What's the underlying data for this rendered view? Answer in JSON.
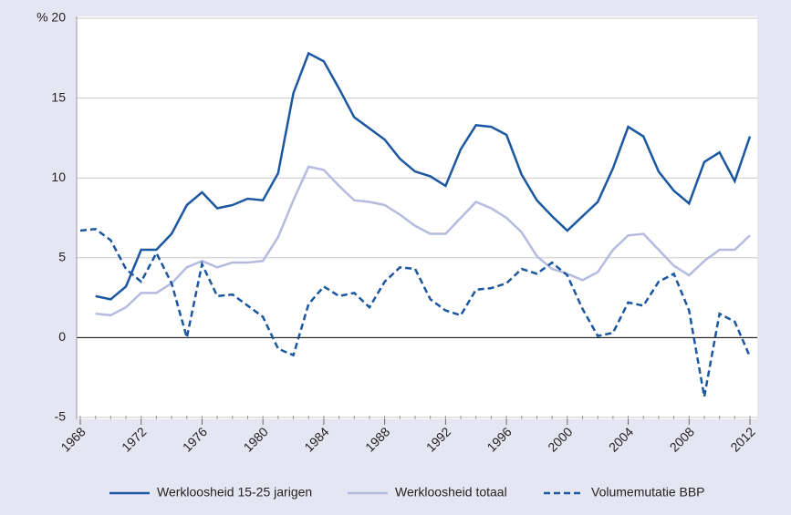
{
  "chart_data": {
    "type": "line",
    "x": [
      1968,
      1969,
      1970,
      1971,
      1972,
      1973,
      1974,
      1975,
      1976,
      1977,
      1978,
      1979,
      1980,
      1981,
      1982,
      1983,
      1984,
      1985,
      1986,
      1987,
      1988,
      1989,
      1990,
      1991,
      1992,
      1993,
      1994,
      1995,
      1996,
      1997,
      1998,
      1999,
      2000,
      2001,
      2002,
      2003,
      2004,
      2005,
      2006,
      2007,
      2008,
      2009,
      2010,
      2011,
      2012
    ],
    "series": [
      {
        "name": "Werkloosheid 15-25 jarigen",
        "color": "#1b57a0",
        "dash": false,
        "values": [
          null,
          2.6,
          2.4,
          3.2,
          5.5,
          5.5,
          6.5,
          8.3,
          9.1,
          8.1,
          8.3,
          8.7,
          8.6,
          10.3,
          15.3,
          17.8,
          17.3,
          15.6,
          13.8,
          13.1,
          12.4,
          11.2,
          10.4,
          10.1,
          9.5,
          11.8,
          13.3,
          13.2,
          12.7,
          10.2,
          8.6,
          7.6,
          6.7,
          7.6,
          8.5,
          10.6,
          13.2,
          12.6,
          10.4,
          9.2,
          8.4,
          11.0,
          11.6,
          9.8,
          12.6
        ]
      },
      {
        "name": "Werkloosheid totaal",
        "color": "#b4bbdf",
        "dash": false,
        "values": [
          null,
          1.5,
          1.4,
          1.9,
          2.8,
          2.8,
          3.4,
          4.4,
          4.8,
          4.4,
          4.7,
          4.7,
          4.8,
          6.3,
          8.6,
          10.7,
          10.5,
          9.5,
          8.6,
          8.5,
          8.3,
          7.7,
          7.0,
          6.5,
          6.5,
          7.5,
          8.5,
          8.1,
          7.5,
          6.6,
          5.1,
          4.3,
          4.0,
          3.6,
          4.1,
          5.5,
          6.4,
          6.5,
          5.5,
          4.5,
          3.9,
          4.8,
          5.5,
          5.5,
          6.4
        ]
      },
      {
        "name": "Volumemutatie BBP",
        "color": "#1b57a0",
        "dash": true,
        "values": [
          6.7,
          6.8,
          6.1,
          4.3,
          3.5,
          5.3,
          3.4,
          0.0,
          4.6,
          2.6,
          2.7,
          2.0,
          1.3,
          -0.7,
          -1.1,
          2.1,
          3.2,
          2.6,
          2.8,
          1.9,
          3.5,
          4.4,
          4.3,
          2.4,
          1.7,
          1.4,
          3.0,
          3.1,
          3.4,
          4.3,
          4.0,
          4.7,
          3.9,
          1.8,
          0.1,
          0.3,
          2.2,
          2.0,
          3.5,
          4.0,
          1.7,
          -3.7,
          1.5,
          1.0,
          -1.2
        ]
      }
    ],
    "xlim": [
      1968,
      2012
    ],
    "xticks": [
      1968,
      1972,
      1976,
      1980,
      1984,
      1988,
      1992,
      1996,
      2000,
      2004,
      2008,
      2012
    ],
    "ylim": [
      -5,
      20
    ],
    "yticks": [
      -5,
      0,
      5,
      10,
      15,
      {
        "value": 20,
        "label": "% 20"
      }
    ],
    "grid": true,
    "legend": "bottom"
  }
}
